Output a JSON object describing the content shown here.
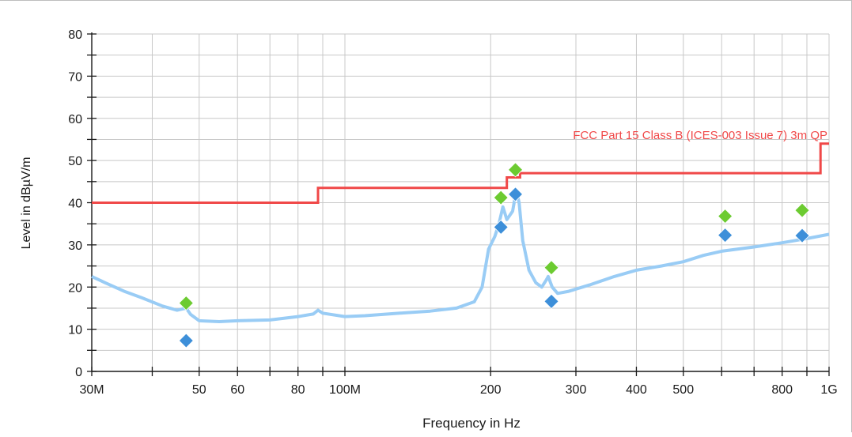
{
  "chart_data": {
    "type": "line",
    "xlabel": "Frequency in Hz",
    "ylabel": "Level in dBµV/m",
    "xscale": "log",
    "xlim": [
      30000000,
      1000000000
    ],
    "ylim": [
      0,
      80
    ],
    "grid": true,
    "x_ticks": [
      {
        "value": 30000000,
        "label": "30M"
      },
      {
        "value": 50000000,
        "label": "50"
      },
      {
        "value": 60000000,
        "label": "60"
      },
      {
        "value": 80000000,
        "label": "80"
      },
      {
        "value": 100000000,
        "label": "100M"
      },
      {
        "value": 200000000,
        "label": "200"
      },
      {
        "value": 300000000,
        "label": "300"
      },
      {
        "value": 400000000,
        "label": "400"
      },
      {
        "value": 500000000,
        "label": "500"
      },
      {
        "value": 800000000,
        "label": "800"
      },
      {
        "value": 1000000000,
        "label": "1G"
      }
    ],
    "x_gridlines": [
      30000000,
      40000000,
      50000000,
      60000000,
      70000000,
      80000000,
      90000000,
      100000000,
      200000000,
      300000000,
      400000000,
      500000000,
      600000000,
      700000000,
      800000000,
      900000000,
      1000000000
    ],
    "y_ticks": [
      0,
      10,
      20,
      30,
      40,
      50,
      60,
      70,
      80
    ],
    "limit_line": {
      "name": "FCC Part 15 Class B (ICES-003 Issue 7) 3m QP",
      "color": "#f04848",
      "points": [
        [
          30000000,
          40
        ],
        [
          88000000,
          40
        ],
        [
          88000000,
          43.5
        ],
        [
          216000000,
          43.5
        ],
        [
          216000000,
          46
        ],
        [
          230000000,
          46
        ],
        [
          230000000,
          47
        ],
        [
          960000000,
          47
        ],
        [
          960000000,
          54
        ],
        [
          1000000000,
          54
        ]
      ]
    },
    "spectrum": {
      "color": "#99ccf5",
      "points": [
        [
          30000000,
          22.5
        ],
        [
          32000000,
          21
        ],
        [
          35000000,
          19
        ],
        [
          38000000,
          17.5
        ],
        [
          42000000,
          15.5
        ],
        [
          45000000,
          14.5
        ],
        [
          47000000,
          15
        ],
        [
          48000000,
          13.5
        ],
        [
          50000000,
          12
        ],
        [
          55000000,
          11.8
        ],
        [
          60000000,
          12
        ],
        [
          70000000,
          12.2
        ],
        [
          80000000,
          13
        ],
        [
          86000000,
          13.6
        ],
        [
          88000000,
          14.5
        ],
        [
          90000000,
          13.8
        ],
        [
          100000000,
          13
        ],
        [
          110000000,
          13.2
        ],
        [
          130000000,
          13.8
        ],
        [
          150000000,
          14.3
        ],
        [
          170000000,
          15
        ],
        [
          185000000,
          16.5
        ],
        [
          192000000,
          20
        ],
        [
          198000000,
          29
        ],
        [
          204000000,
          32
        ],
        [
          208000000,
          35
        ],
        [
          212000000,
          39
        ],
        [
          216000000,
          36
        ],
        [
          222000000,
          38
        ],
        [
          226000000,
          43
        ],
        [
          229000000,
          40
        ],
        [
          233000000,
          31
        ],
        [
          240000000,
          24
        ],
        [
          248000000,
          21
        ],
        [
          255000000,
          20
        ],
        [
          260000000,
          21.5
        ],
        [
          263000000,
          22.5
        ],
        [
          268000000,
          20
        ],
        [
          275000000,
          18.5
        ],
        [
          290000000,
          19
        ],
        [
          320000000,
          20.5
        ],
        [
          360000000,
          22.5
        ],
        [
          400000000,
          24
        ],
        [
          450000000,
          25
        ],
        [
          500000000,
          26
        ],
        [
          550000000,
          27.5
        ],
        [
          600000000,
          28.5
        ],
        [
          700000000,
          29.5
        ],
        [
          800000000,
          30.5
        ],
        [
          900000000,
          31.5
        ],
        [
          1000000000,
          32.5
        ]
      ]
    },
    "peak_markers": {
      "color": "#6ccb31",
      "points": [
        [
          47000000,
          16.2
        ],
        [
          210000000,
          41.2
        ],
        [
          225000000,
          47.8
        ],
        [
          267000000,
          24.6
        ],
        [
          610000000,
          36.8
        ],
        [
          880000000,
          38.2
        ]
      ]
    },
    "qp_markers": {
      "color": "#3d8fd9",
      "points": [
        [
          47000000,
          7.3
        ],
        [
          210000000,
          34.2
        ],
        [
          225000000,
          42
        ],
        [
          267000000,
          16.6
        ],
        [
          610000000,
          32.3
        ],
        [
          880000000,
          32.2
        ]
      ]
    }
  }
}
